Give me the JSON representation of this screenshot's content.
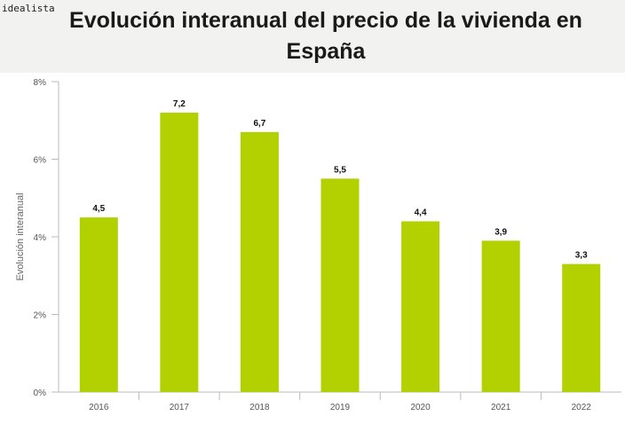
{
  "brand": "idealista",
  "chart_data": {
    "type": "bar",
    "title": "Evolución interanual del precio de la vivienda en España",
    "categories": [
      "2016",
      "2017",
      "2018",
      "2019",
      "2020",
      "2021",
      "2022"
    ],
    "values": [
      4.5,
      7.2,
      6.7,
      5.5,
      4.4,
      3.9,
      3.3
    ],
    "value_labels": [
      "4,5",
      "7,2",
      "6,7",
      "5,5",
      "4,4",
      "3,9",
      "3,3"
    ],
    "xlabel": "",
    "ylabel": "Evolución interanual",
    "ylim": [
      0,
      8
    ],
    "yticks": [
      0,
      2,
      4,
      6,
      8
    ],
    "ytick_labels": [
      "0%",
      "2%",
      "4%",
      "6%",
      "8%"
    ],
    "bar_color": "#b3d000",
    "grid": false
  }
}
